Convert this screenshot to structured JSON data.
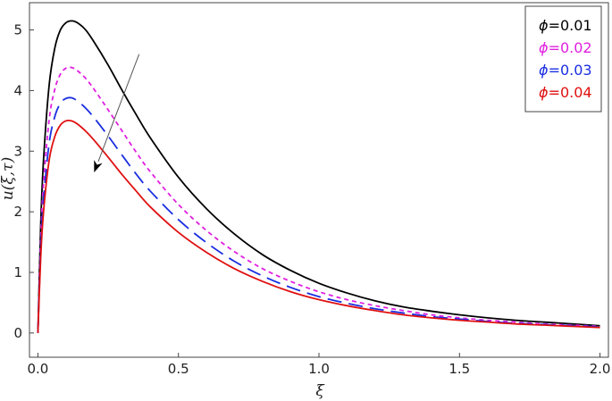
{
  "chart_data": {
    "type": "line",
    "title": "",
    "xlabel": "ξ",
    "ylabel": "u(ξ,τ)",
    "xlim": [
      -0.03,
      2.03
    ],
    "ylim": [
      -0.4,
      5.45
    ],
    "x_ticks": [
      {
        "value": 0.0,
        "label": "0.0"
      },
      {
        "value": 0.5,
        "label": "0.5"
      },
      {
        "value": 1.0,
        "label": "1.0"
      },
      {
        "value": 1.5,
        "label": "1.5"
      },
      {
        "value": 2.0,
        "label": "2.0"
      }
    ],
    "y_ticks": [
      {
        "value": 0,
        "label": "0"
      },
      {
        "value": 1,
        "label": "1"
      },
      {
        "value": 2,
        "label": "2"
      },
      {
        "value": 3,
        "label": "3"
      },
      {
        "value": 4,
        "label": "4"
      },
      {
        "value": 5,
        "label": "5"
      }
    ],
    "grid": false,
    "legend_position": "top-right",
    "series": [
      {
        "name": "ϕ=0.01",
        "label_symbol": "ϕ",
        "label_value": "=0.01",
        "color": "#000000",
        "dash": "solid",
        "x": [
          0.0,
          0.01,
          0.02,
          0.04,
          0.06,
          0.08,
          0.1,
          0.12,
          0.14,
          0.17,
          0.2,
          0.25,
          0.3,
          0.35,
          0.4,
          0.5,
          0.6,
          0.7,
          0.8,
          0.9,
          1.0,
          1.1,
          1.2,
          1.3,
          1.4,
          1.5,
          1.6,
          1.7,
          1.8,
          1.9,
          2.0
        ],
        "values": [
          0.0,
          1.8,
          2.86,
          4.09,
          4.7,
          5.0,
          5.12,
          5.15,
          5.12,
          5.0,
          4.8,
          4.42,
          4.0,
          3.6,
          3.22,
          2.57,
          2.05,
          1.63,
          1.29,
          1.03,
          0.82,
          0.66,
          0.53,
          0.43,
          0.36,
          0.3,
          0.25,
          0.21,
          0.18,
          0.15,
          0.12
        ]
      },
      {
        "name": "ϕ=0.02",
        "label_symbol": "ϕ",
        "label_value": "=0.02",
        "color": "#e020e0",
        "dash": "dashed",
        "x": [
          0.0,
          0.01,
          0.02,
          0.04,
          0.06,
          0.08,
          0.1,
          0.12,
          0.14,
          0.17,
          0.2,
          0.25,
          0.3,
          0.35,
          0.4,
          0.5,
          0.6,
          0.7,
          0.8,
          0.9,
          1.0,
          1.1,
          1.2,
          1.3,
          1.4,
          1.5,
          1.6,
          1.7,
          1.8,
          1.9,
          2.0
        ],
        "values": [
          0.0,
          1.55,
          2.47,
          3.52,
          4.02,
          4.27,
          4.37,
          4.38,
          4.33,
          4.2,
          4.02,
          3.68,
          3.33,
          2.98,
          2.66,
          2.12,
          1.69,
          1.34,
          1.06,
          0.85,
          0.68,
          0.55,
          0.45,
          0.37,
          0.3,
          0.25,
          0.21,
          0.18,
          0.15,
          0.13,
          0.11
        ]
      },
      {
        "name": "ϕ=0.03",
        "label_symbol": "ϕ",
        "label_value": "=0.03",
        "color": "#1a2ee0",
        "dash": "long-dashed",
        "x": [
          0.0,
          0.01,
          0.02,
          0.04,
          0.06,
          0.08,
          0.1,
          0.12,
          0.14,
          0.17,
          0.2,
          0.25,
          0.3,
          0.35,
          0.4,
          0.5,
          0.6,
          0.7,
          0.8,
          0.9,
          1.0,
          1.1,
          1.2,
          1.3,
          1.4,
          1.5,
          1.6,
          1.7,
          1.8,
          1.9,
          2.0
        ],
        "values": [
          0.0,
          1.38,
          2.2,
          3.13,
          3.57,
          3.79,
          3.87,
          3.88,
          3.83,
          3.71,
          3.55,
          3.25,
          2.93,
          2.62,
          2.34,
          1.87,
          1.49,
          1.18,
          0.94,
          0.75,
          0.6,
          0.49,
          0.4,
          0.33,
          0.27,
          0.23,
          0.19,
          0.16,
          0.14,
          0.12,
          0.1
        ]
      },
      {
        "name": "ϕ=0.04",
        "label_symbol": "ϕ",
        "label_value": "=0.04",
        "color": "#e01010",
        "dash": "solid",
        "x": [
          0.0,
          0.01,
          0.02,
          0.04,
          0.06,
          0.08,
          0.1,
          0.12,
          0.14,
          0.17,
          0.2,
          0.25,
          0.3,
          0.35,
          0.4,
          0.5,
          0.6,
          0.7,
          0.8,
          0.9,
          1.0,
          1.1,
          1.2,
          1.3,
          1.4,
          1.5,
          1.6,
          1.7,
          1.8,
          1.9,
          2.0
        ],
        "values": [
          0.0,
          1.25,
          2.0,
          2.85,
          3.24,
          3.43,
          3.5,
          3.5,
          3.45,
          3.33,
          3.18,
          2.9,
          2.61,
          2.34,
          2.08,
          1.66,
          1.33,
          1.06,
          0.85,
          0.68,
          0.55,
          0.45,
          0.37,
          0.3,
          0.25,
          0.21,
          0.18,
          0.15,
          0.13,
          0.11,
          0.09
        ]
      }
    ],
    "annotation": {
      "type": "arrow",
      "meaning": "direction of increasing ϕ",
      "from": {
        "x": 0.36,
        "y": 4.6
      },
      "to": {
        "x": 0.2,
        "y": 2.65
      }
    }
  }
}
